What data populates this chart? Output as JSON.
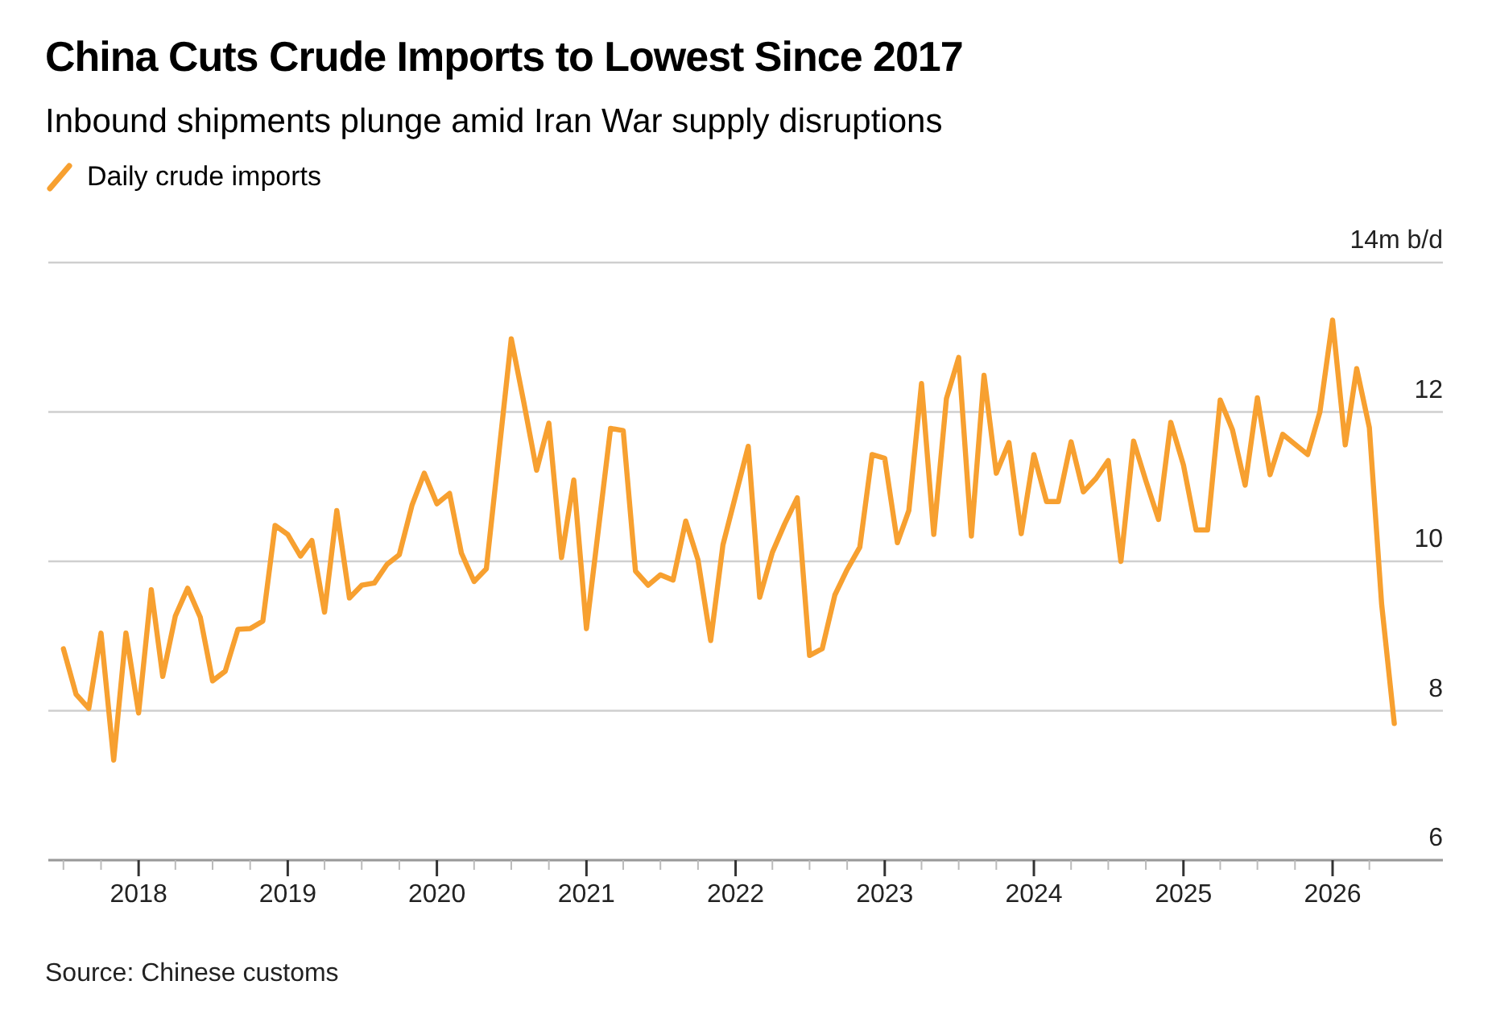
{
  "chart_data": {
    "type": "line",
    "title": "China Cuts Crude Imports to Lowest Since 2017",
    "subtitle": "Inbound shipments plunge amid Iran War supply disruptions",
    "annotations": [
      "Source: Chinese customs"
    ],
    "legend": "top left",
    "grid": "y",
    "marker": "none",
    "line_style": "solid",
    "x": [
      "2017-07",
      "2017-08",
      "2017-09",
      "2017-10",
      "2017-11",
      "2017-12",
      "2018-01",
      "2018-02",
      "2018-03",
      "2018-04",
      "2018-05",
      "2018-06",
      "2018-07",
      "2018-08",
      "2018-09",
      "2018-10",
      "2018-11",
      "2018-12",
      "2019-01",
      "2019-02",
      "2019-03",
      "2019-04",
      "2019-05",
      "2019-06",
      "2019-07",
      "2019-08",
      "2019-09",
      "2019-10",
      "2019-11",
      "2019-12",
      "2020-01",
      "2020-02",
      "2020-03",
      "2020-04",
      "2020-05",
      "2020-07",
      "2020-08",
      "2020-09",
      "2020-10",
      "2020-11",
      "2020-12",
      "2021-01",
      "2021-03",
      "2021-04",
      "2021-05",
      "2021-06",
      "2021-07",
      "2021-08",
      "2021-09",
      "2021-10",
      "2021-11",
      "2021-12",
      "2022-02",
      "2022-03",
      "2022-04",
      "2022-05",
      "2022-06",
      "2022-07",
      "2022-08",
      "2022-09",
      "2022-10",
      "2022-11",
      "2022-12",
      "2023-01",
      "2023-02",
      "2023-03",
      "2023-04",
      "2023-05",
      "2023-06",
      "2023-07",
      "2023-08",
      "2023-09",
      "2023-10",
      "2023-11",
      "2023-12",
      "2024-01",
      "2024-02",
      "2024-03",
      "2024-04",
      "2024-05",
      "2024-06",
      "2024-07",
      "2024-08",
      "2024-09",
      "2024-10",
      "2024-11",
      "2024-12",
      "2025-01",
      "2025-02",
      "2025-03",
      "2025-04",
      "2025-05",
      "2025-06",
      "2025-07",
      "2025-08",
      "2025-09",
      "2025-11",
      "2025-12",
      "2026-01",
      "2026-02",
      "2026-03",
      "2026-04",
      "2026-05",
      "2026-06"
    ],
    "series": [
      {
        "name": "Daily crude imports",
        "color": "#f7a030",
        "values": [
          8.83,
          8.22,
          8.03,
          9.04,
          7.34,
          9.04,
          7.97,
          9.62,
          8.46,
          9.27,
          9.64,
          9.25,
          8.4,
          8.53,
          9.09,
          9.1,
          9.2,
          10.48,
          10.36,
          10.07,
          10.28,
          9.32,
          10.68,
          9.51,
          9.68,
          9.71,
          9.96,
          10.09,
          10.75,
          11.18,
          10.77,
          10.91,
          10.11,
          9.73,
          9.9,
          12.98,
          12.12,
          11.22,
          11.85,
          10.05,
          11.09,
          9.1,
          11.78,
          11.75,
          9.87,
          9.68,
          9.82,
          9.75,
          10.54,
          10.02,
          8.94,
          10.22,
          11.54,
          9.52,
          10.12,
          10.5,
          10.85,
          8.74,
          8.83,
          9.55,
          9.89,
          10.19,
          11.43,
          11.38,
          10.25,
          10.68,
          12.38,
          10.36,
          12.18,
          12.73,
          10.34,
          12.49,
          11.18,
          11.59,
          10.37,
          11.43,
          10.8,
          10.8,
          11.6,
          10.93,
          11.11,
          11.35,
          10.0,
          11.61,
          11.08,
          10.56,
          11.86,
          11.29,
          10.42,
          10.42,
          12.16,
          11.76,
          11.02,
          12.19,
          11.16,
          11.7,
          11.43,
          12.0,
          13.23,
          11.56,
          12.58,
          11.79,
          9.43,
          7.83
        ]
      }
    ],
    "xlim": [
      "2017-05-25",
      "2026-09-28"
    ],
    "xticks": [
      {
        "value": "2017-07",
        "label": null
      },
      {
        "value": "2017-10",
        "label": null
      },
      "2018",
      {
        "value": "2018-04",
        "label": null
      },
      {
        "value": "2018-07",
        "label": null
      },
      {
        "value": "2018-10",
        "label": null
      },
      "2019",
      {
        "value": "2019-04",
        "label": null
      },
      {
        "value": "2019-07",
        "label": null
      },
      {
        "value": "2019-10",
        "label": null
      },
      "2020",
      {
        "value": "2020-04",
        "label": null
      },
      {
        "value": "2020-07",
        "label": null
      },
      {
        "value": "2020-10",
        "label": null
      },
      "2021",
      {
        "value": "2021-04",
        "label": null
      },
      {
        "value": "2021-07",
        "label": null
      },
      {
        "value": "2021-10",
        "label": null
      },
      "2022",
      {
        "value": "2022-04",
        "label": null
      },
      {
        "value": "2022-07",
        "label": null
      },
      {
        "value": "2022-10",
        "label": null
      },
      "2023",
      {
        "value": "2023-04",
        "label": null
      },
      {
        "value": "2023-07",
        "label": null
      },
      {
        "value": "2023-10",
        "label": null
      },
      "2024",
      {
        "value": "2024-04",
        "label": null
      },
      {
        "value": "2024-07",
        "label": null
      },
      {
        "value": "2024-10",
        "label": null
      },
      "2025",
      {
        "value": "2025-04",
        "label": null
      },
      {
        "value": "2025-07",
        "label": null
      },
      {
        "value": "2025-10",
        "label": null
      },
      "2026",
      {
        "value": "2026-04",
        "label": null
      }
    ],
    "ylim": [
      6,
      14
    ],
    "yticks": [
      6,
      8,
      10,
      12,
      {
        "value": 14,
        "label": "14m b/d"
      }
    ]
  }
}
